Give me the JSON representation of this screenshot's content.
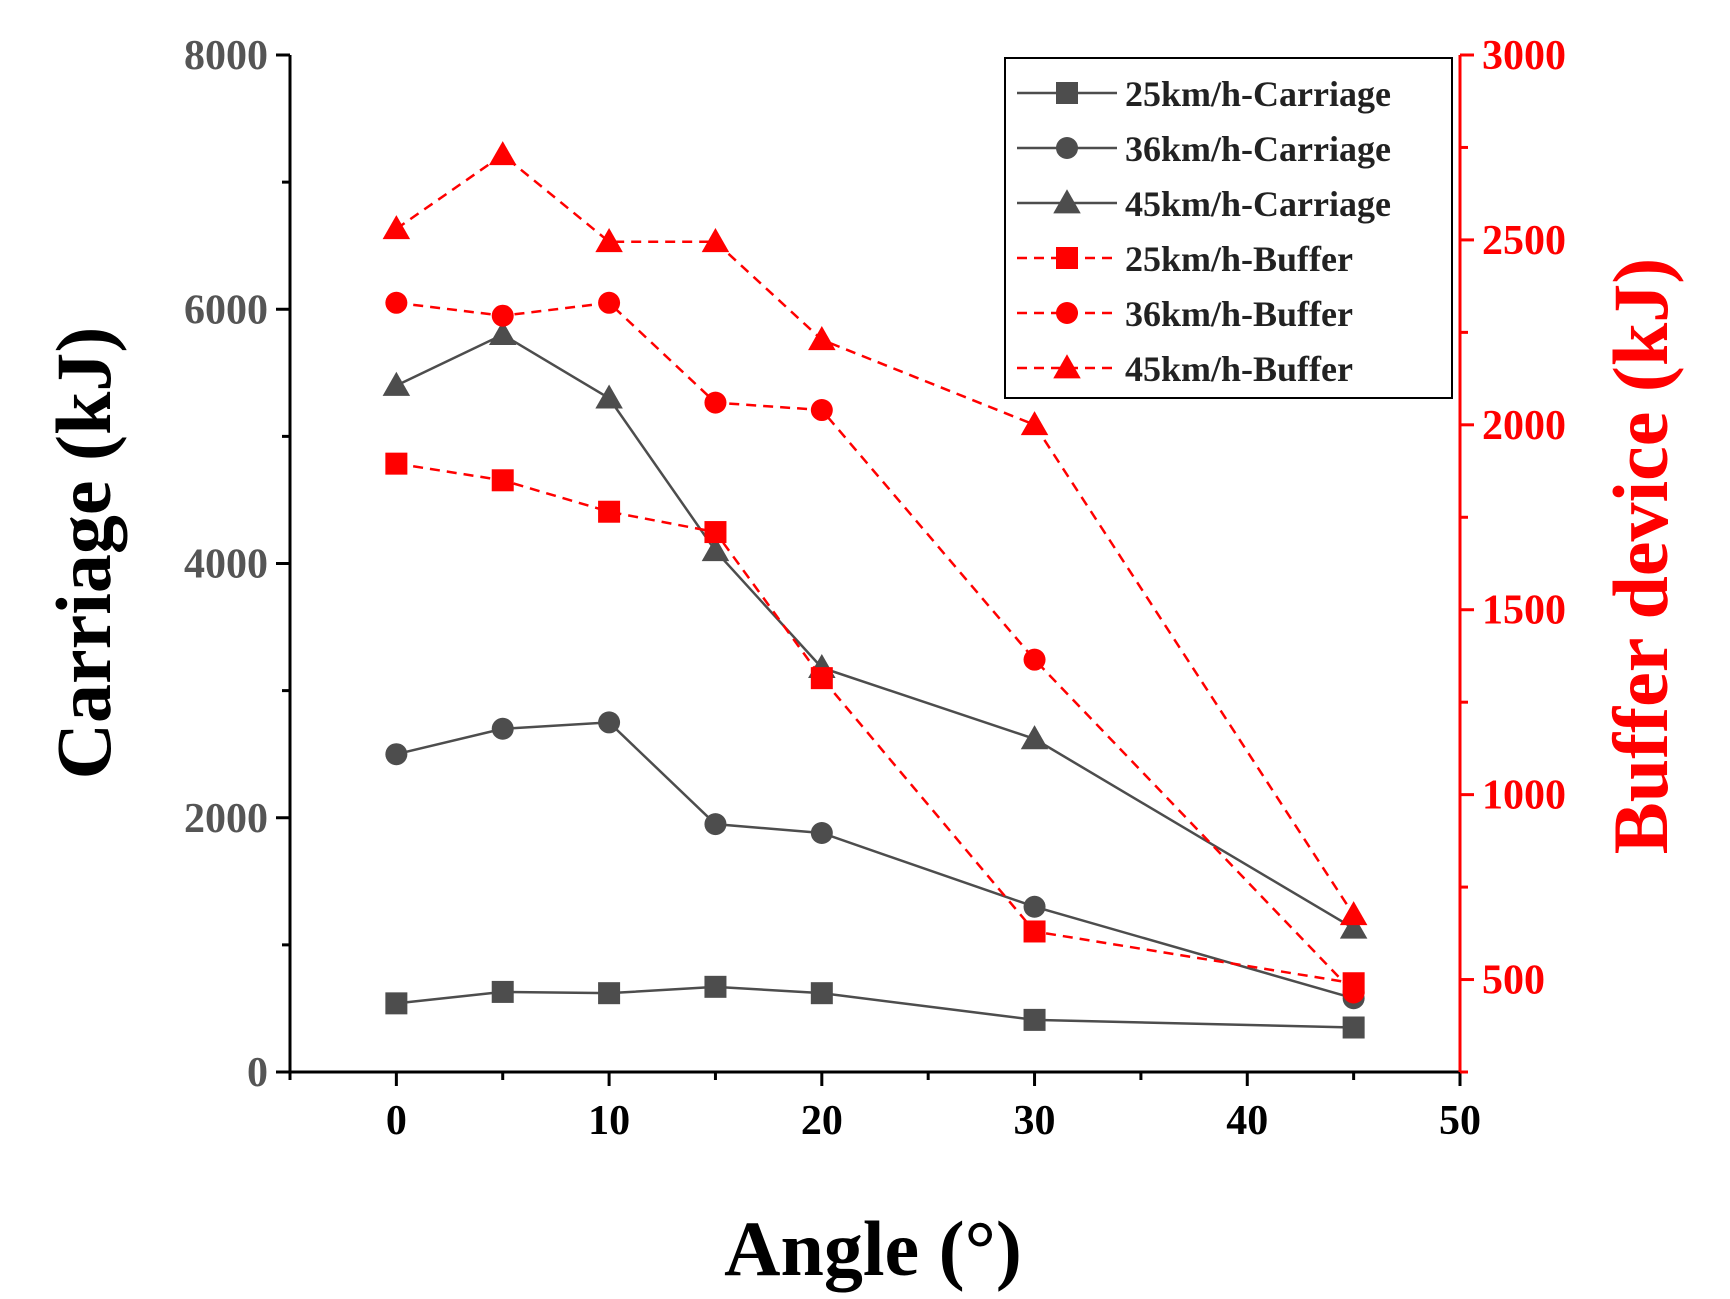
{
  "chart_data": {
    "type": "line",
    "xlabel": "Angle (°)",
    "ylabel_left": "Carriage (kJ)",
    "ylabel_right": "Buffer device (kJ)",
    "xlim": [
      -5,
      50
    ],
    "ylim_left": [
      0,
      8000
    ],
    "ylim_right": [
      250,
      3000
    ],
    "x_ticks": [
      0,
      10,
      20,
      30,
      40,
      50
    ],
    "y_left_ticks": [
      0,
      2000,
      4000,
      6000,
      8000
    ],
    "y_right_ticks": [
      500,
      1000,
      1500,
      2000,
      2500,
      3000
    ],
    "x": [
      0,
      5,
      10,
      15,
      20,
      30,
      45
    ],
    "series": [
      {
        "name": "25km/h-Carriage",
        "axis": "left",
        "marker": "square",
        "dash": "solid",
        "color": "#4d4d4d",
        "values": [
          540,
          630,
          620,
          670,
          620,
          410,
          350
        ]
      },
      {
        "name": "36km/h-Carriage",
        "axis": "left",
        "marker": "circle",
        "dash": "solid",
        "color": "#4d4d4d",
        "values": [
          2500,
          2700,
          2750,
          1950,
          1880,
          1300,
          580
        ]
      },
      {
        "name": "45km/h-Carriage",
        "axis": "left",
        "marker": "triangle",
        "dash": "solid",
        "color": "#4d4d4d",
        "values": [
          5400,
          5800,
          5300,
          4100,
          3180,
          2620,
          1130
        ]
      },
      {
        "name": "25km/h-Buffer",
        "axis": "right",
        "marker": "square",
        "dash": "dashed",
        "color": "#ff0000",
        "values": [
          1895,
          1850,
          1765,
          1710,
          1315,
          630,
          490
        ]
      },
      {
        "name": "36km/h-Buffer",
        "axis": "right",
        "marker": "circle",
        "dash": "dashed",
        "color": "#ff0000",
        "values": [
          2330,
          2295,
          2330,
          2060,
          2040,
          1365,
          465
        ]
      },
      {
        "name": "45km/h-Buffer",
        "axis": "right",
        "marker": "triangle",
        "dash": "dashed",
        "color": "#ff0000",
        "values": [
          2530,
          2730,
          2495,
          2495,
          2230,
          2000,
          675
        ]
      }
    ],
    "legend_position": "top-right",
    "left_axis_color": "#000000",
    "left_tick_color": "#555555",
    "right_axis_color": "#ff0000"
  }
}
